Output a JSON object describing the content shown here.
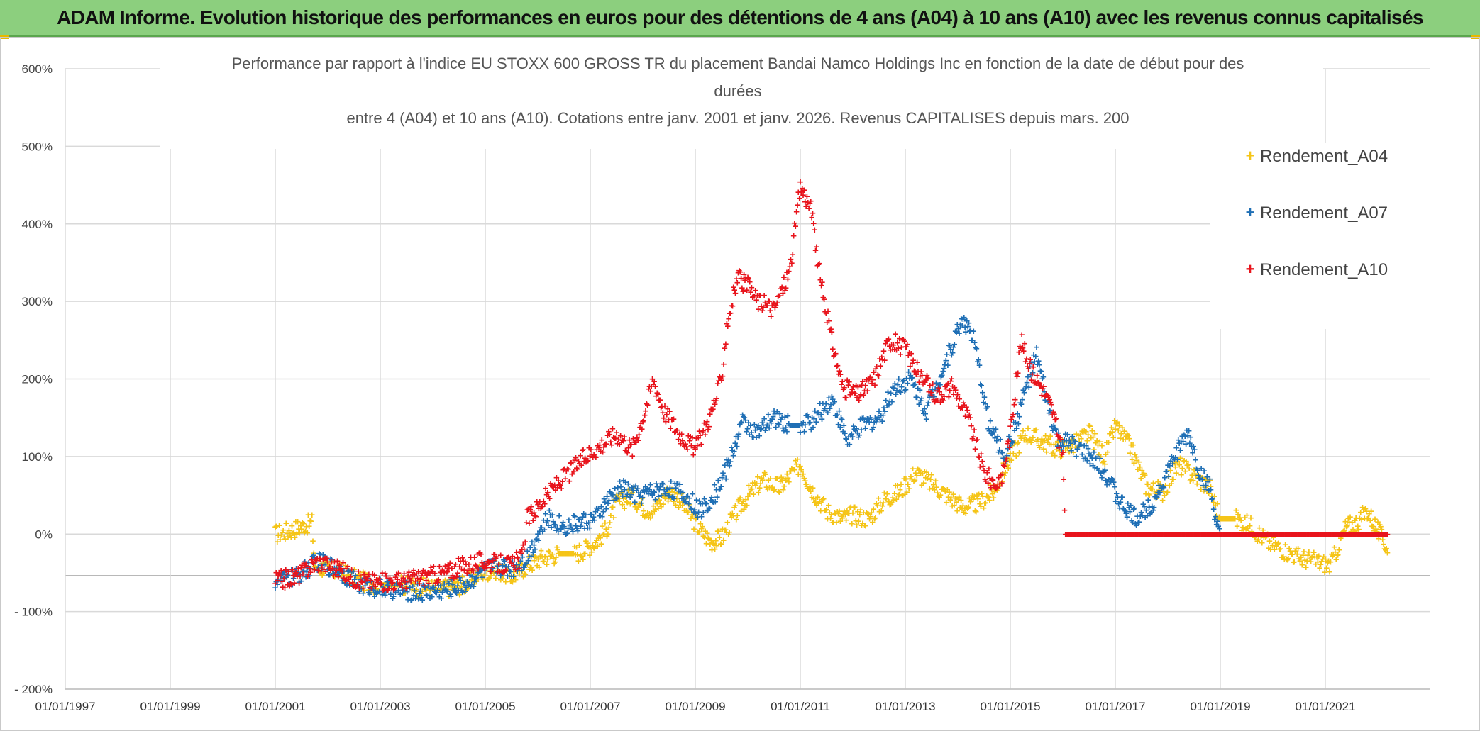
{
  "banner": {
    "text": "ADAM Informe. Evolution historique des performances en euros pour des détentions de 4 ans (A04) à 10 ans (A10) avec les revenus connus capitalisés"
  },
  "colors": {
    "A04": "#f5c518",
    "A07": "#1f6fb5",
    "A10": "#e8141c",
    "grid": "#d9d9d9",
    "banner_bg": "#8ccf7e"
  },
  "chart_data": {
    "type": "scatter",
    "title_lines": [
      "Performance par rapport à l'indice EU STOXX 600 GROSS TR  du placement Bandai Namco Holdings Inc en fonction de la date de début pour des",
      "durées",
      "entre 4 (A04) et 10 ans (A10). Cotations entre janv. 2001 et janv. 2026. Revenus CAPITALISES depuis mars. 200"
    ],
    "xlim": [
      1997.0,
      2023.0
    ],
    "ylim": [
      -200,
      600
    ],
    "yticks": [
      {
        "value": 600,
        "label": "600%"
      },
      {
        "value": 500,
        "label": "500%"
      },
      {
        "value": 400,
        "label": "400%"
      },
      {
        "value": 300,
        "label": "300%"
      },
      {
        "value": 200,
        "label": "200%"
      },
      {
        "value": 100,
        "label": "100%"
      },
      {
        "value": 0,
        "label": "0%"
      },
      {
        "value": -100,
        "label": "- 100%"
      },
      {
        "value": -200,
        "label": "- 200%"
      }
    ],
    "xticks": [
      {
        "value": 1997.0,
        "label": "01/01/1997"
      },
      {
        "value": 1999.0,
        "label": "01/01/1999"
      },
      {
        "value": 2001.0,
        "label": "01/01/2001"
      },
      {
        "value": 2003.0,
        "label": "01/01/2003"
      },
      {
        "value": 2005.0,
        "label": "01/01/2005"
      },
      {
        "value": 2007.0,
        "label": "01/01/2007"
      },
      {
        "value": 2009.0,
        "label": "01/01/2009"
      },
      {
        "value": 2011.0,
        "label": "01/01/2011"
      },
      {
        "value": 2013.0,
        "label": "01/01/2013"
      },
      {
        "value": 2015.0,
        "label": "01/01/2015"
      },
      {
        "value": 2017.0,
        "label": "01/01/2017"
      },
      {
        "value": 2019.0,
        "label": "01/01/2019"
      },
      {
        "value": 2021.0,
        "label": "01/01/2021"
      }
    ],
    "legend_position": "top-right",
    "series": [
      {
        "name": "Rendement_A04",
        "key": "A04",
        "points": [
          [
            2001.0,
            0
          ],
          [
            2001.3,
            5
          ],
          [
            2001.5,
            10
          ],
          [
            2001.7,
            15
          ],
          [
            2001.75,
            -40
          ],
          [
            2002.0,
            -45
          ],
          [
            2002.3,
            -50
          ],
          [
            2002.6,
            -60
          ],
          [
            2003.0,
            -65
          ],
          [
            2003.4,
            -65
          ],
          [
            2003.8,
            -68
          ],
          [
            2004.2,
            -70
          ],
          [
            2004.6,
            -65
          ],
          [
            2004.9,
            -50
          ],
          [
            2005.2,
            -45
          ],
          [
            2005.5,
            -55
          ],
          [
            2005.8,
            -40
          ],
          [
            2006.1,
            -30
          ],
          [
            2006.4,
            -25
          ],
          [
            2006.7,
            -25
          ],
          [
            2006.9,
            -20
          ],
          [
            2007.1,
            -10
          ],
          [
            2007.3,
            5
          ],
          [
            2007.5,
            40
          ],
          [
            2007.8,
            50
          ],
          [
            2008.0,
            35
          ],
          [
            2008.2,
            30
          ],
          [
            2008.5,
            55
          ],
          [
            2008.7,
            45
          ],
          [
            2008.9,
            25
          ],
          [
            2009.1,
            5
          ],
          [
            2009.3,
            -10
          ],
          [
            2009.5,
            -5
          ],
          [
            2009.8,
            30
          ],
          [
            2010.0,
            50
          ],
          [
            2010.3,
            70
          ],
          [
            2010.6,
            60
          ],
          [
            2010.8,
            75
          ],
          [
            2011.0,
            90
          ],
          [
            2011.2,
            60
          ],
          [
            2011.5,
            30
          ],
          [
            2011.8,
            20
          ],
          [
            2012.0,
            25
          ],
          [
            2012.3,
            20
          ],
          [
            2012.6,
            45
          ],
          [
            2012.9,
            55
          ],
          [
            2013.2,
            80
          ],
          [
            2013.5,
            65
          ],
          [
            2013.8,
            50
          ],
          [
            2014.1,
            35
          ],
          [
            2014.4,
            40
          ],
          [
            2014.7,
            55
          ],
          [
            2015.0,
            100
          ],
          [
            2015.3,
            130
          ],
          [
            2015.6,
            120
          ],
          [
            2015.9,
            110
          ],
          [
            2016.2,
            115
          ],
          [
            2016.5,
            130
          ],
          [
            2016.8,
            100
          ],
          [
            2017.0,
            140
          ],
          [
            2017.3,
            110
          ],
          [
            2017.6,
            60
          ],
          [
            2017.9,
            55
          ],
          [
            2018.2,
            90
          ],
          [
            2018.5,
            75
          ],
          [
            2018.8,
            60
          ],
          [
            2019.0,
            20
          ],
          [
            2019.3,
            20
          ],
          [
            2019.6,
            10
          ],
          [
            2019.9,
            -10
          ],
          [
            2020.2,
            -20
          ],
          [
            2020.5,
            -30
          ],
          [
            2020.8,
            -35
          ],
          [
            2021.1,
            -40
          ],
          [
            2021.4,
            10
          ],
          [
            2021.6,
            15
          ],
          [
            2021.8,
            30
          ],
          [
            2022.0,
            5
          ],
          [
            2022.2,
            -20
          ]
        ]
      },
      {
        "name": "Rendement_A07",
        "key": "A07",
        "points": [
          [
            2001.0,
            -60
          ],
          [
            2001.4,
            -55
          ],
          [
            2001.8,
            -35
          ],
          [
            2002.2,
            -45
          ],
          [
            2002.6,
            -65
          ],
          [
            2003.0,
            -70
          ],
          [
            2003.4,
            -72
          ],
          [
            2003.8,
            -75
          ],
          [
            2004.2,
            -72
          ],
          [
            2004.6,
            -65
          ],
          [
            2004.9,
            -50
          ],
          [
            2005.2,
            -40
          ],
          [
            2005.5,
            -45
          ],
          [
            2005.8,
            -30
          ],
          [
            2006.0,
            0
          ],
          [
            2006.2,
            20
          ],
          [
            2006.5,
            10
          ],
          [
            2006.8,
            15
          ],
          [
            2007.1,
            20
          ],
          [
            2007.3,
            40
          ],
          [
            2007.6,
            60
          ],
          [
            2007.9,
            50
          ],
          [
            2008.2,
            55
          ],
          [
            2008.5,
            60
          ],
          [
            2008.8,
            50
          ],
          [
            2009.1,
            30
          ],
          [
            2009.4,
            55
          ],
          [
            2009.6,
            85
          ],
          [
            2009.9,
            145
          ],
          [
            2010.2,
            130
          ],
          [
            2010.5,
            150
          ],
          [
            2010.8,
            140
          ],
          [
            2011.0,
            140
          ],
          [
            2011.3,
            150
          ],
          [
            2011.6,
            175
          ],
          [
            2011.9,
            120
          ],
          [
            2012.2,
            140
          ],
          [
            2012.5,
            150
          ],
          [
            2012.8,
            190
          ],
          [
            2013.1,
            200
          ],
          [
            2013.4,
            160
          ],
          [
            2013.7,
            210
          ],
          [
            2013.9,
            245
          ],
          [
            2014.1,
            280
          ],
          [
            2014.3,
            250
          ],
          [
            2014.6,
            140
          ],
          [
            2014.9,
            100
          ],
          [
            2015.1,
            140
          ],
          [
            2015.3,
            190
          ],
          [
            2015.5,
            230
          ],
          [
            2015.7,
            170
          ],
          [
            2015.9,
            120
          ],
          [
            2016.2,
            115
          ],
          [
            2016.5,
            100
          ],
          [
            2016.8,
            80
          ],
          [
            2017.1,
            40
          ],
          [
            2017.4,
            20
          ],
          [
            2017.7,
            40
          ],
          [
            2018.0,
            80
          ],
          [
            2018.2,
            110
          ],
          [
            2018.4,
            130
          ],
          [
            2018.6,
            80
          ],
          [
            2018.8,
            60
          ],
          [
            2019.0,
            -10
          ]
        ]
      },
      {
        "name": "Rendement_A10",
        "key": "A10",
        "points": [
          [
            2001.0,
            -60
          ],
          [
            2001.4,
            -55
          ],
          [
            2001.8,
            -35
          ],
          [
            2002.2,
            -45
          ],
          [
            2002.6,
            -60
          ],
          [
            2003.0,
            -62
          ],
          [
            2003.4,
            -60
          ],
          [
            2003.8,
            -55
          ],
          [
            2004.2,
            -50
          ],
          [
            2004.6,
            -40
          ],
          [
            2004.9,
            -35
          ],
          [
            2005.2,
            -38
          ],
          [
            2005.5,
            -40
          ],
          [
            2005.7,
            -30
          ],
          [
            2005.8,
            20
          ],
          [
            2006.0,
            35
          ],
          [
            2006.3,
            60
          ],
          [
            2006.6,
            80
          ],
          [
            2006.9,
            100
          ],
          [
            2007.2,
            115
          ],
          [
            2007.5,
            130
          ],
          [
            2007.8,
            110
          ],
          [
            2008.0,
            150
          ],
          [
            2008.2,
            200
          ],
          [
            2008.4,
            160
          ],
          [
            2008.7,
            130
          ],
          [
            2009.0,
            110
          ],
          [
            2009.3,
            155
          ],
          [
            2009.5,
            200
          ],
          [
            2009.6,
            270
          ],
          [
            2009.8,
            330
          ],
          [
            2010.0,
            320
          ],
          [
            2010.2,
            300
          ],
          [
            2010.5,
            290
          ],
          [
            2010.8,
            340
          ],
          [
            2011.0,
            450
          ],
          [
            2011.2,
            420
          ],
          [
            2011.4,
            320
          ],
          [
            2011.6,
            250
          ],
          [
            2011.8,
            190
          ],
          [
            2012.1,
            180
          ],
          [
            2012.4,
            200
          ],
          [
            2012.7,
            250
          ],
          [
            2013.0,
            240
          ],
          [
            2013.3,
            200
          ],
          [
            2013.6,
            180
          ],
          [
            2013.9,
            190
          ],
          [
            2014.2,
            150
          ],
          [
            2014.5,
            80
          ],
          [
            2014.8,
            60
          ],
          [
            2015.0,
            130
          ],
          [
            2015.2,
            250
          ],
          [
            2015.4,
            210
          ],
          [
            2015.6,
            190
          ],
          [
            2015.8,
            160
          ],
          [
            2016.0,
            100
          ],
          [
            2016.05,
            0
          ],
          [
            2022.2,
            0
          ]
        ]
      }
    ]
  }
}
